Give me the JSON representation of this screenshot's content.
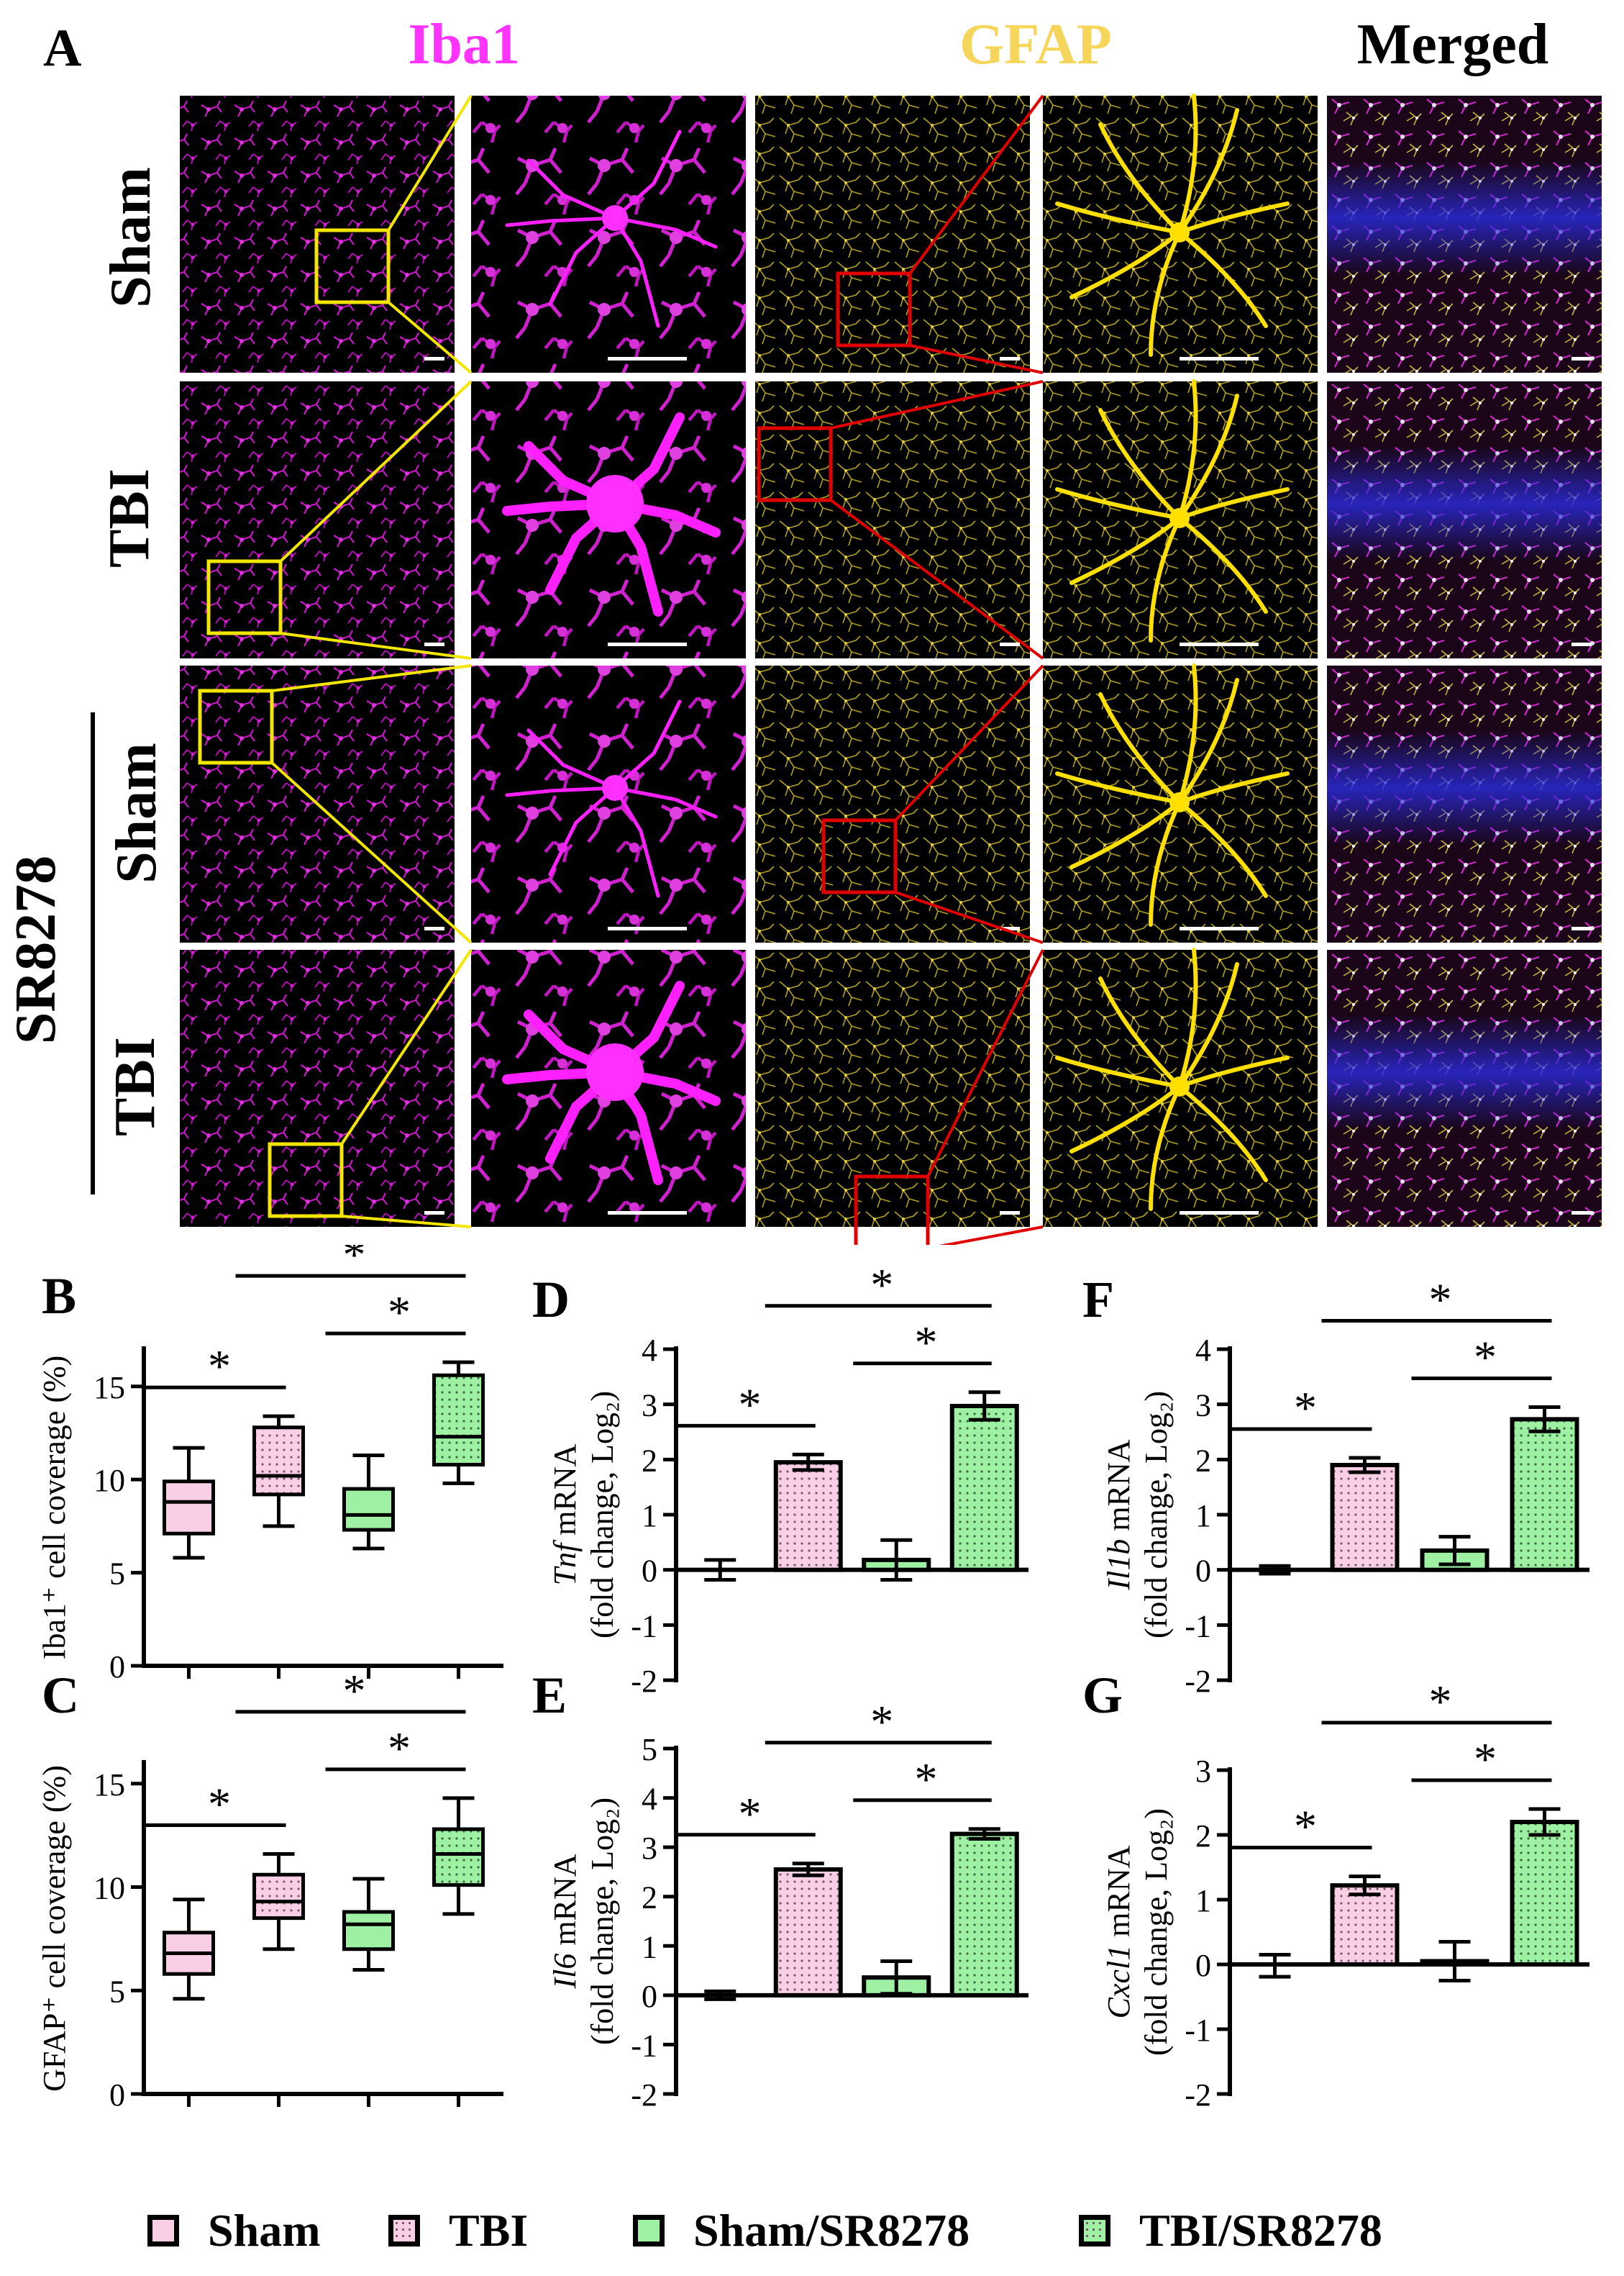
{
  "panel_a": {
    "letter": "A",
    "columns": [
      {
        "label": "Iba1",
        "color": "#ff33ff"
      },
      {
        "label": "GFAP",
        "color": "#f5d55a"
      },
      {
        "label": "Merged",
        "color": "#000000"
      }
    ],
    "row_labels": [
      "Sham",
      "TBI",
      "Sham",
      "TBI"
    ],
    "group_label": "SR8278"
  },
  "legend": {
    "items": [
      {
        "label": "Sham",
        "fill": "#f9cfe6",
        "pattern": "none"
      },
      {
        "label": "TBI",
        "fill": "#f9cfe6",
        "pattern": "dots"
      },
      {
        "label": "Sham/SR8278",
        "fill": "#9ef0a3",
        "pattern": "none"
      },
      {
        "label": "TBI/SR8278",
        "fill": "#9ef0a3",
        "pattern": "dots"
      }
    ]
  },
  "chart_data": [
    {
      "panel": "B",
      "type": "box",
      "ylabel": "Iba1⁺ cell coverage (%)",
      "ylim": [
        0,
        17
      ],
      "yticks": [
        0,
        5,
        10,
        15
      ],
      "groups": [
        "Sham",
        "TBI",
        "Sham/SR8278",
        "TBI/SR8278"
      ],
      "boxes": [
        {
          "min": 5.8,
          "q1": 7.1,
          "median": 8.8,
          "q3": 9.9,
          "max": 11.7
        },
        {
          "min": 7.5,
          "q1": 9.2,
          "median": 10.2,
          "q3": 12.8,
          "max": 13.4
        },
        {
          "min": 6.3,
          "q1": 7.3,
          "median": 8.1,
          "q3": 9.5,
          "max": 11.3
        },
        {
          "min": 9.8,
          "q1": 10.8,
          "median": 12.3,
          "q3": 15.6,
          "max": 16.3
        }
      ],
      "significance": [
        "*",
        "*",
        "*"
      ]
    },
    {
      "panel": "C",
      "type": "box",
      "ylabel": "GFAP⁺ cell coverage (%)",
      "ylim": [
        0,
        16
      ],
      "yticks": [
        0,
        5,
        10,
        15
      ],
      "groups": [
        "Sham",
        "TBI",
        "Sham/SR8278",
        "TBI/SR8278"
      ],
      "boxes": [
        {
          "min": 4.6,
          "q1": 5.8,
          "median": 6.8,
          "q3": 7.8,
          "max": 9.4
        },
        {
          "min": 7.0,
          "q1": 8.5,
          "median": 9.3,
          "q3": 10.6,
          "max": 11.6
        },
        {
          "min": 6.0,
          "q1": 7.0,
          "median": 8.2,
          "q3": 8.8,
          "max": 10.4
        },
        {
          "min": 8.7,
          "q1": 10.1,
          "median": 11.6,
          "q3": 12.8,
          "max": 14.3
        }
      ],
      "significance": [
        "*",
        "*",
        "*"
      ]
    },
    {
      "panel": "D",
      "type": "bar",
      "ylabel_italic": "Tnf",
      "ylabel_rest": " mRNA",
      "ylabel2": "(fold change, Log₂)",
      "ylim": [
        -2,
        4
      ],
      "yticks": [
        -2,
        -1,
        0,
        1,
        2,
        3,
        4
      ],
      "groups": [
        "Sham",
        "TBI",
        "Sham/SR8278",
        "TBI/SR8278"
      ],
      "values": [
        0.0,
        1.95,
        0.18,
        2.97
      ],
      "errors": [
        0.18,
        0.14,
        0.36,
        0.25
      ],
      "significance": [
        "*",
        "*",
        "*"
      ]
    },
    {
      "panel": "E",
      "type": "bar",
      "ylabel_italic": "Il6",
      "ylabel_rest": " mRNA",
      "ylabel2": "(fold change, Log₂)",
      "ylim": [
        -2,
        5
      ],
      "yticks": [
        -2,
        -1,
        0,
        1,
        2,
        3,
        4,
        5
      ],
      "groups": [
        "Sham",
        "TBI",
        "Sham/SR8278",
        "TBI/SR8278"
      ],
      "values": [
        0.0,
        2.55,
        0.36,
        3.27
      ],
      "errors": [
        0.08,
        0.12,
        0.33,
        0.1
      ],
      "significance": [
        "*",
        "*",
        "*"
      ]
    },
    {
      "panel": "F",
      "type": "bar",
      "ylabel_italic": "Il1b",
      "ylabel_rest": " mRNA",
      "ylabel2": "(fold change, Log₂)",
      "ylim": [
        -2,
        4
      ],
      "yticks": [
        -2,
        -1,
        0,
        1,
        2,
        3,
        4
      ],
      "groups": [
        "Sham",
        "TBI",
        "Sham/SR8278",
        "TBI/SR8278"
      ],
      "values": [
        0.0,
        1.9,
        0.35,
        2.73
      ],
      "errors": [
        0.07,
        0.13,
        0.25,
        0.22
      ],
      "significance": [
        "*",
        "*",
        "*"
      ]
    },
    {
      "panel": "G",
      "type": "bar",
      "ylabel_italic": "Cxcl1",
      "ylabel_rest": " mRNA",
      "ylabel2": "(fold change, Log₂)",
      "ylim": [
        -2,
        3
      ],
      "yticks": [
        -2,
        -1,
        0,
        1,
        2,
        3
      ],
      "groups": [
        "Sham",
        "TBI",
        "Sham/SR8278",
        "TBI/SR8278"
      ],
      "values": [
        -0.02,
        1.22,
        0.05,
        2.2
      ],
      "errors": [
        0.17,
        0.14,
        0.3,
        0.2
      ],
      "significance": [
        "*",
        "*",
        "*"
      ]
    }
  ]
}
